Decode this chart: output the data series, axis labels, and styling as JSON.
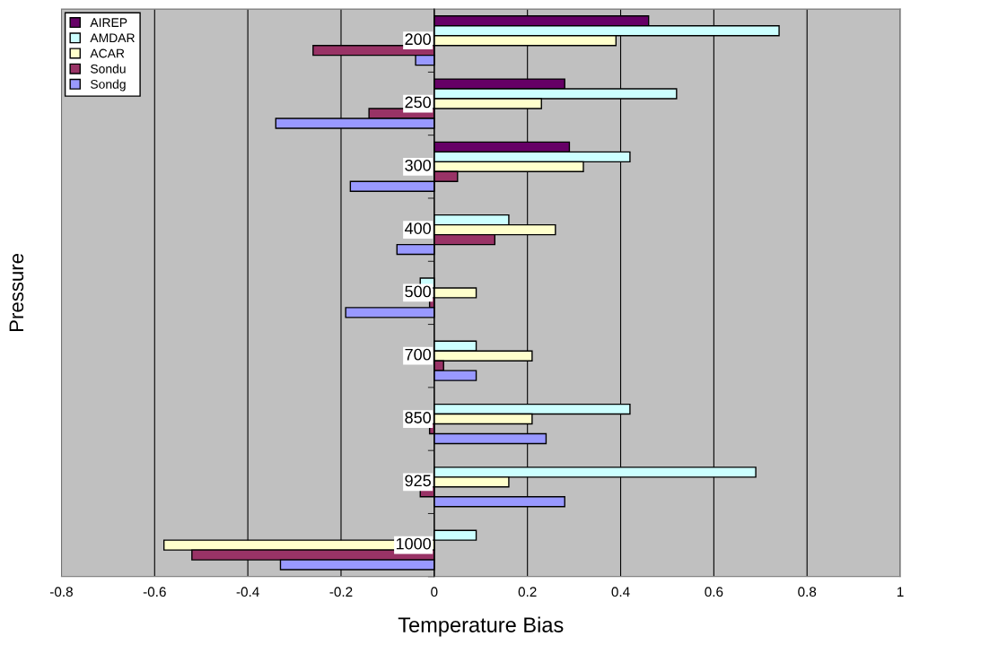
{
  "chart_data": {
    "type": "bar",
    "orientation": "horizontal",
    "xlabel": "Temperature Bias",
    "ylabel": "Pressure",
    "categories": [
      "200",
      "250",
      "300",
      "400",
      "500",
      "700",
      "850",
      "925",
      "1000"
    ],
    "series": [
      {
        "name": "AIREP",
        "color": "#660066",
        "values": [
          0.46,
          0.28,
          0.29,
          null,
          null,
          null,
          null,
          null,
          null
        ]
      },
      {
        "name": "AMDAR",
        "color": "#ccffff",
        "values": [
          0.74,
          0.52,
          0.42,
          0.16,
          -0.03,
          0.09,
          0.42,
          0.69,
          0.09
        ]
      },
      {
        "name": "ACAR",
        "color": "#ffffcc",
        "values": [
          0.39,
          0.23,
          0.32,
          0.26,
          0.09,
          0.21,
          0.21,
          0.16,
          -0.58
        ]
      },
      {
        "name": "Sondu",
        "color": "#993366",
        "values": [
          -0.26,
          -0.14,
          0.05,
          0.13,
          -0.01,
          0.02,
          -0.01,
          -0.03,
          -0.52
        ]
      },
      {
        "name": "Sondg",
        "color": "#9999ff",
        "values": [
          -0.04,
          -0.34,
          -0.18,
          -0.08,
          -0.19,
          0.09,
          0.24,
          0.28,
          -0.33
        ]
      }
    ],
    "xlim": [
      -0.8,
      1
    ],
    "xticks": [
      -0.8,
      -0.6,
      -0.4,
      -0.2,
      0,
      0.2,
      0.4,
      0.6,
      0.8,
      1
    ],
    "grid": "x",
    "legend": "top left"
  }
}
